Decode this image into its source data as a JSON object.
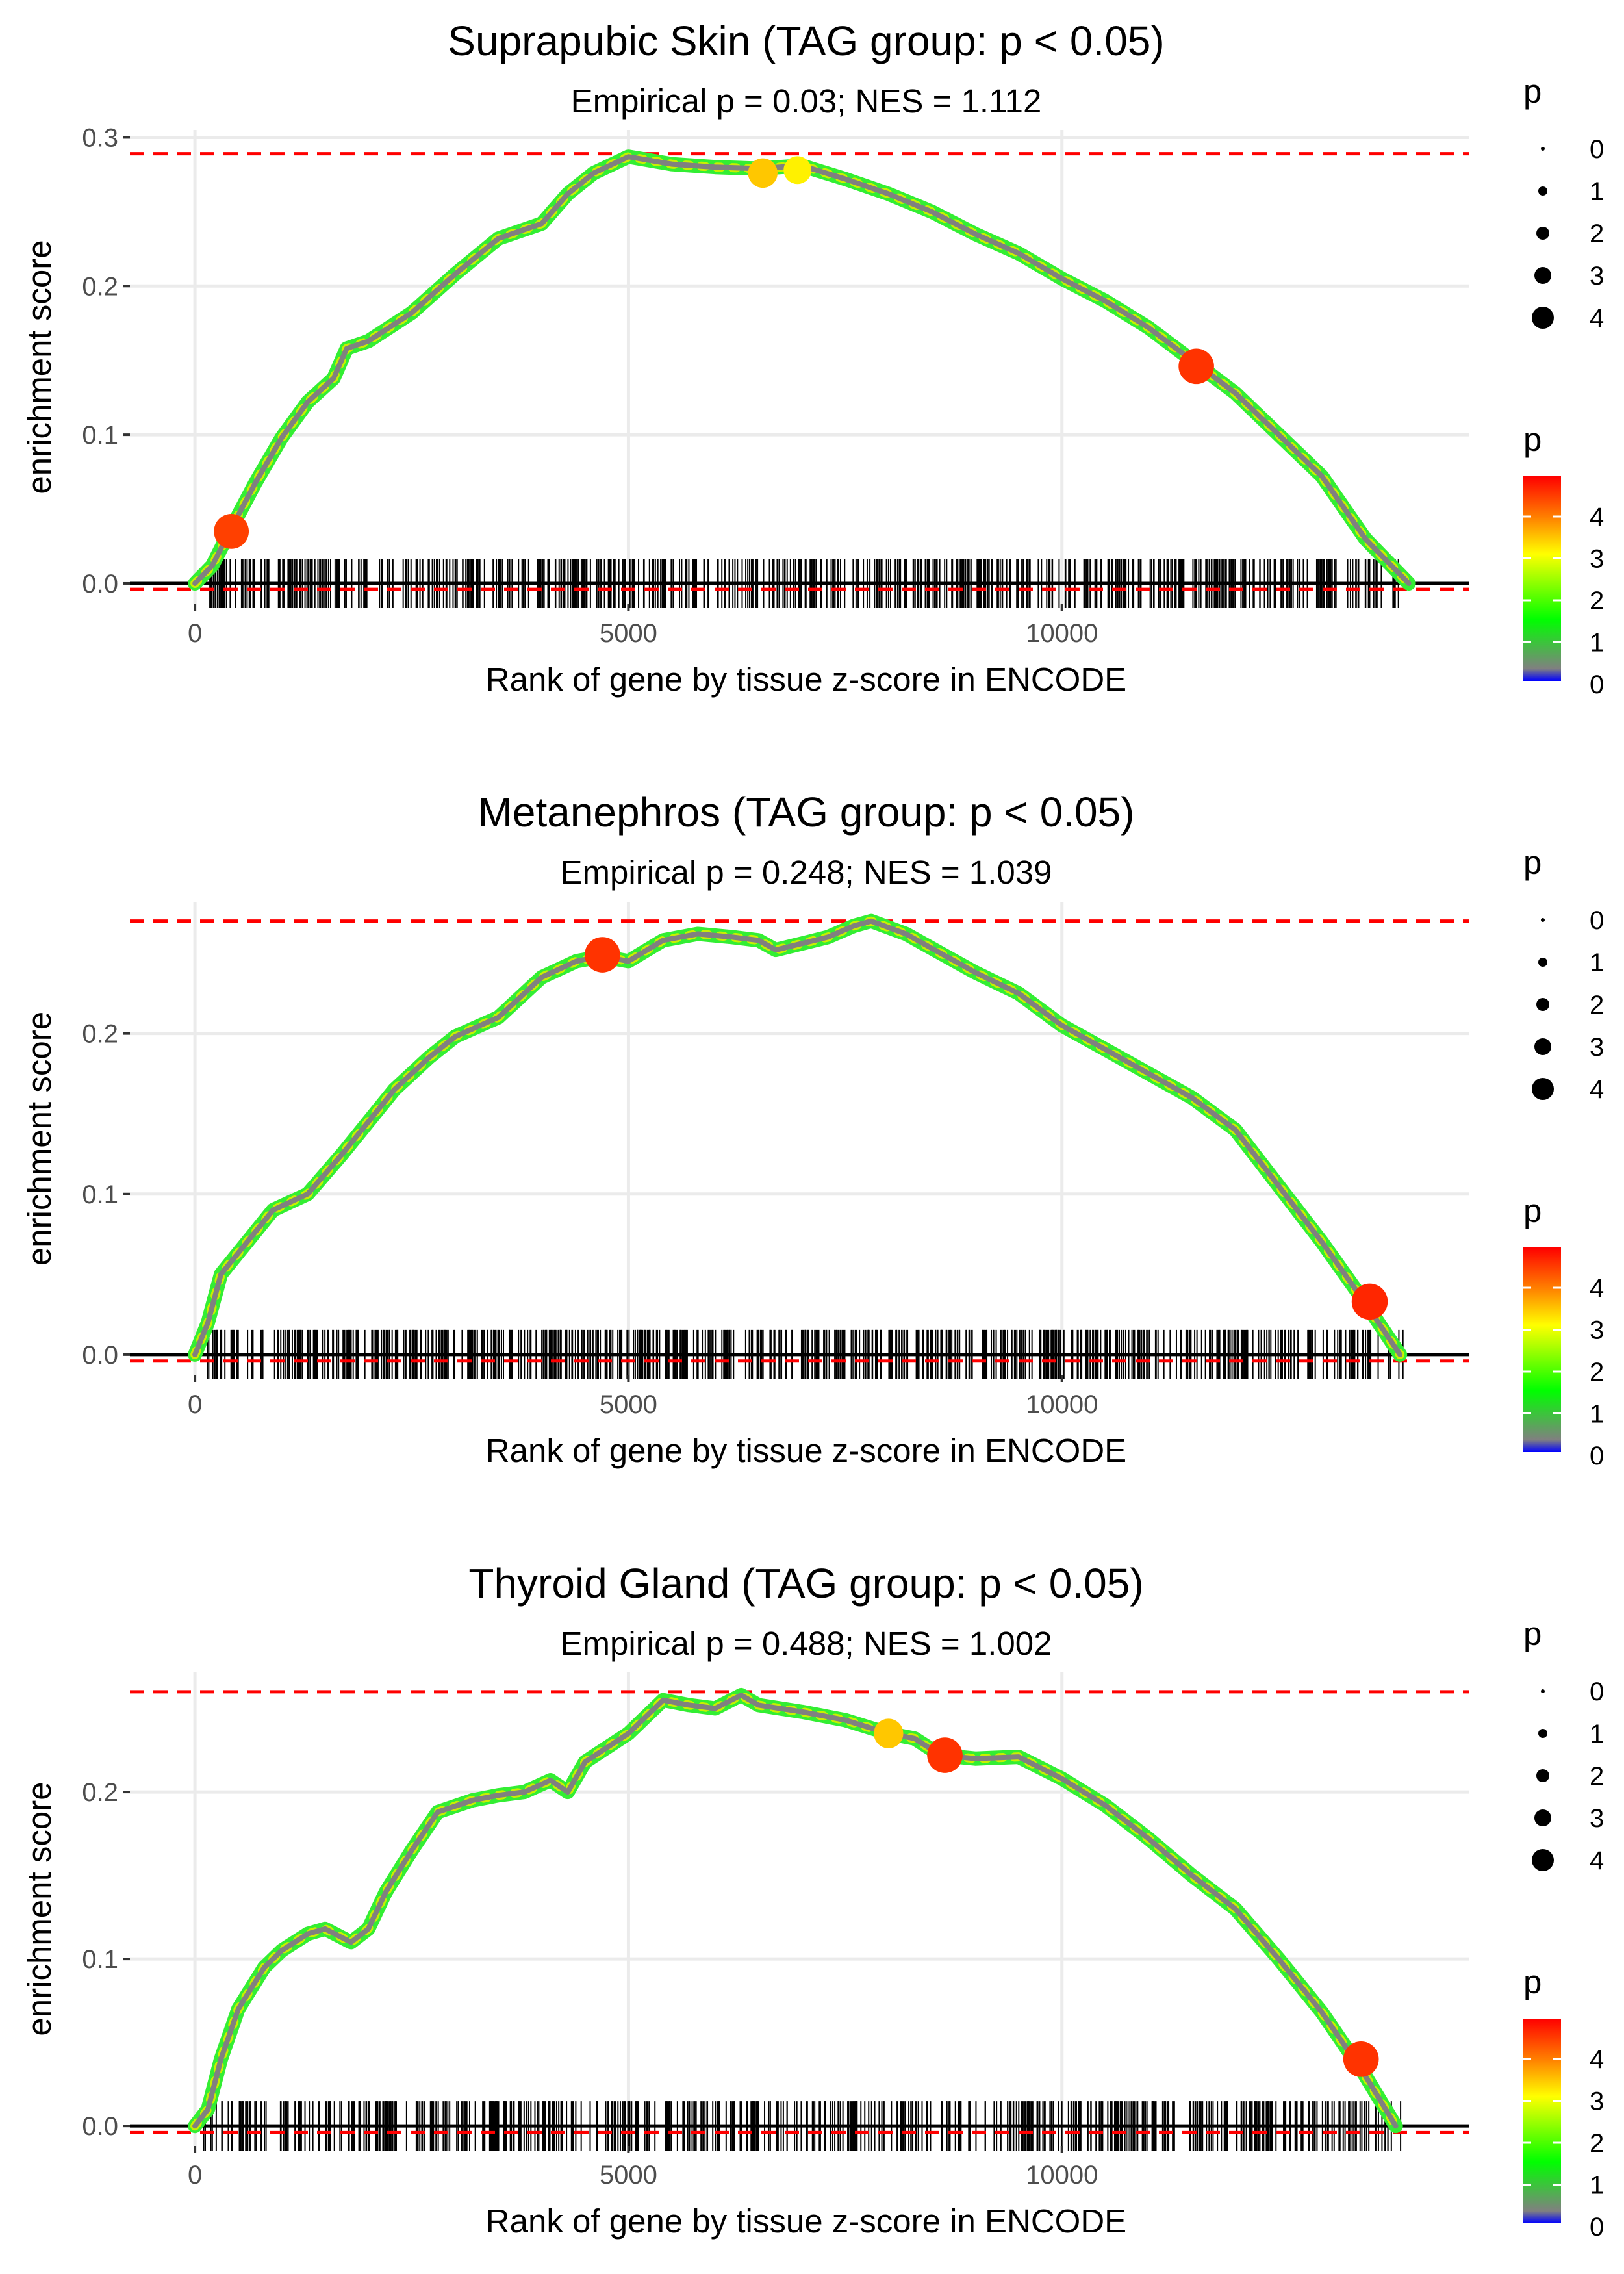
{
  "figure_title": "GSEA-style enrichment plots for TAG group p < 0.05",
  "colors": {
    "grid": "#ebebeb",
    "threshold_line": "#ff0000",
    "baseline": "#000000",
    "tick_mark": "#000000",
    "curve_low": "#808080",
    "gradient": [
      "#0000ff",
      "#808080",
      "#00ff00",
      "#ffff00",
      "#ff8000",
      "#ff0000"
    ]
  },
  "chart_data": [
    {
      "type": "line",
      "title": "Suprapubic Skin (TAG group: p < 0.05)",
      "subtitle": "Empirical p = 0.03; NES = 1.112",
      "xlabel": "Rank of gene by tissue z-score in ENCODE",
      "ylabel": "enrichment score",
      "xlim": [
        -750,
        14700
      ],
      "ylim": [
        -0.014,
        0.305
      ],
      "x_ticks": [
        0,
        5000,
        10000
      ],
      "y_ticks": [
        0.0,
        0.1,
        0.2,
        0.3
      ],
      "y_tick_labels": [
        "0.0",
        "0.1",
        "0.2",
        "0.3"
      ],
      "max_es": 0.289,
      "min_es": -0.004,
      "curve": [
        [
          0,
          0
        ],
        [
          200,
          0.012
        ],
        [
          400,
          0.035
        ],
        [
          700,
          0.068
        ],
        [
          1000,
          0.098
        ],
        [
          1300,
          0.122
        ],
        [
          1600,
          0.138
        ],
        [
          1750,
          0.158
        ],
        [
          2000,
          0.163
        ],
        [
          2500,
          0.182
        ],
        [
          3000,
          0.208
        ],
        [
          3500,
          0.232
        ],
        [
          3800,
          0.238
        ],
        [
          4000,
          0.242
        ],
        [
          4300,
          0.262
        ],
        [
          4600,
          0.276
        ],
        [
          5000,
          0.287
        ],
        [
          5500,
          0.282
        ],
        [
          6000,
          0.28
        ],
        [
          6500,
          0.279
        ],
        [
          7000,
          0.281
        ],
        [
          7500,
          0.272
        ],
        [
          8000,
          0.262
        ],
        [
          8500,
          0.25
        ],
        [
          9000,
          0.235
        ],
        [
          9500,
          0.222
        ],
        [
          10000,
          0.205
        ],
        [
          10500,
          0.19
        ],
        [
          11000,
          0.172
        ],
        [
          11500,
          0.15
        ],
        [
          12000,
          0.128
        ],
        [
          12500,
          0.1
        ],
        [
          13000,
          0.072
        ],
        [
          13500,
          0.03
        ],
        [
          14000,
          0
        ]
      ],
      "highlights": [
        {
          "x": 420,
          "y": 0.035,
          "p": 4.5
        },
        {
          "x": 6550,
          "y": 0.276,
          "p": 3.5
        },
        {
          "x": 6950,
          "y": 0.278,
          "p": 3.2
        },
        {
          "x": 11550,
          "y": 0.146,
          "p": 4.6
        }
      ],
      "gene_rank_ticks": {
        "from": 100,
        "to": 13950,
        "count": 560,
        "seed": 11
      }
    },
    {
      "type": "line",
      "title": "Metanephros (TAG group: p < 0.05)",
      "subtitle": "Empirical p = 0.248; NES = 1.039",
      "xlabel": "Rank of gene by tissue z-score in ENCODE",
      "ylabel": "enrichment score",
      "xlim": [
        -750,
        14700
      ],
      "ylim": [
        -0.013,
        0.282
      ],
      "x_ticks": [
        0,
        5000,
        10000
      ],
      "y_ticks": [
        0.0,
        0.1,
        0.2
      ],
      "y_tick_labels": [
        "0.0",
        "0.1",
        "0.2"
      ],
      "max_es": 0.27,
      "min_es": -0.004,
      "curve": [
        [
          0,
          0
        ],
        [
          150,
          0.02
        ],
        [
          300,
          0.05
        ],
        [
          600,
          0.07
        ],
        [
          900,
          0.09
        ],
        [
          1300,
          0.1
        ],
        [
          1700,
          0.125
        ],
        [
          2000,
          0.145
        ],
        [
          2300,
          0.165
        ],
        [
          2700,
          0.185
        ],
        [
          3000,
          0.198
        ],
        [
          3500,
          0.21
        ],
        [
          4000,
          0.235
        ],
        [
          4400,
          0.245
        ],
        [
          4700,
          0.248
        ],
        [
          5000,
          0.245
        ],
        [
          5400,
          0.258
        ],
        [
          5800,
          0.262
        ],
        [
          6200,
          0.26
        ],
        [
          6500,
          0.258
        ],
        [
          6700,
          0.252
        ],
        [
          7000,
          0.256
        ],
        [
          7300,
          0.26
        ],
        [
          7600,
          0.267
        ],
        [
          7800,
          0.27
        ],
        [
          8200,
          0.262
        ],
        [
          8600,
          0.25
        ],
        [
          9000,
          0.238
        ],
        [
          9500,
          0.225
        ],
        [
          10000,
          0.205
        ],
        [
          10500,
          0.19
        ],
        [
          11000,
          0.175
        ],
        [
          11500,
          0.16
        ],
        [
          12000,
          0.14
        ],
        [
          12500,
          0.105
        ],
        [
          13000,
          0.07
        ],
        [
          13500,
          0.032
        ],
        [
          13900,
          0
        ]
      ],
      "highlights": [
        {
          "x": 4700,
          "y": 0.249,
          "p": 4.6
        },
        {
          "x": 13550,
          "y": 0.033,
          "p": 4.7
        }
      ],
      "gene_rank_ticks": {
        "from": 100,
        "to": 13950,
        "count": 620,
        "seed": 23
      }
    },
    {
      "type": "line",
      "title": "Thyroid Gland (TAG group: p < 0.05)",
      "subtitle": "Empirical p = 0.488; NES = 1.002",
      "xlabel": "Rank of gene by tissue z-score in ENCODE",
      "ylabel": "enrichment score",
      "xlim": [
        -750,
        14700
      ],
      "ylim": [
        -0.012,
        0.272
      ],
      "x_ticks": [
        0,
        5000,
        10000
      ],
      "y_ticks": [
        0.0,
        0.1,
        0.2
      ],
      "y_tick_labels": [
        "0.0",
        "0.1",
        "0.2"
      ],
      "max_es": 0.26,
      "min_es": -0.004,
      "curve": [
        [
          0,
          0
        ],
        [
          150,
          0.01
        ],
        [
          300,
          0.04
        ],
        [
          500,
          0.07
        ],
        [
          800,
          0.095
        ],
        [
          1000,
          0.105
        ],
        [
          1300,
          0.115
        ],
        [
          1500,
          0.118
        ],
        [
          1800,
          0.11
        ],
        [
          2000,
          0.118
        ],
        [
          2200,
          0.14
        ],
        [
          2500,
          0.165
        ],
        [
          2800,
          0.188
        ],
        [
          3200,
          0.195
        ],
        [
          3500,
          0.198
        ],
        [
          3800,
          0.2
        ],
        [
          4100,
          0.207
        ],
        [
          4300,
          0.2
        ],
        [
          4500,
          0.218
        ],
        [
          5000,
          0.235
        ],
        [
          5400,
          0.255
        ],
        [
          5700,
          0.252
        ],
        [
          6000,
          0.25
        ],
        [
          6300,
          0.258
        ],
        [
          6500,
          0.252
        ],
        [
          7000,
          0.248
        ],
        [
          7500,
          0.243
        ],
        [
          8000,
          0.235
        ],
        [
          8300,
          0.232
        ],
        [
          8600,
          0.222
        ],
        [
          9000,
          0.22
        ],
        [
          9500,
          0.221
        ],
        [
          10000,
          0.208
        ],
        [
          10500,
          0.192
        ],
        [
          11000,
          0.172
        ],
        [
          11500,
          0.15
        ],
        [
          12000,
          0.13
        ],
        [
          12500,
          0.1
        ],
        [
          13000,
          0.068
        ],
        [
          13500,
          0.03
        ],
        [
          13850,
          0
        ]
      ],
      "highlights": [
        {
          "x": 8000,
          "y": 0.235,
          "p": 3.5
        },
        {
          "x": 8650,
          "y": 0.222,
          "p": 4.6
        },
        {
          "x": 13450,
          "y": 0.04,
          "p": 4.6
        }
      ],
      "gene_rank_ticks": {
        "from": 100,
        "to": 13950,
        "count": 560,
        "seed": 37
      }
    }
  ],
  "legends": [
    {
      "size_title": "p",
      "size_labels": [
        "0",
        "1",
        "2",
        "3",
        "4"
      ],
      "color_title": "p",
      "color_labels": [
        "4",
        "3",
        "2",
        "1",
        "0"
      ]
    },
    {
      "size_title": "p",
      "size_labels": [
        "0",
        "1",
        "2",
        "3",
        "4"
      ],
      "color_title": "p",
      "color_labels": [
        "4",
        "3",
        "2",
        "1",
        "0"
      ]
    },
    {
      "size_title": "p",
      "size_labels": [
        "0",
        "1",
        "2",
        "3",
        "4"
      ],
      "color_title": "p",
      "color_labels": [
        "4",
        "3",
        "2",
        "1",
        "0"
      ]
    }
  ]
}
